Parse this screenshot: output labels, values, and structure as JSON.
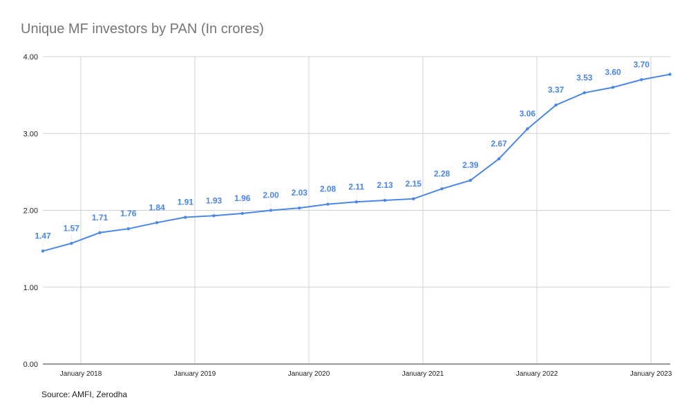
{
  "chart_data": {
    "type": "line",
    "title": "Unique MF investors by PAN (In crores)",
    "source": "Source: AMFI, Zerodha",
    "xlabel": "",
    "ylabel": "",
    "ylim": [
      0,
      4
    ],
    "yticks": [
      "0.00",
      "1.00",
      "2.00",
      "3.00",
      "4.00"
    ],
    "xticks": [
      {
        "date": "2018-01",
        "label": "January 2018"
      },
      {
        "date": "2019-01",
        "label": "January 2019"
      },
      {
        "date": "2020-01",
        "label": "January 2020"
      },
      {
        "date": "2021-01",
        "label": "January 2021"
      },
      {
        "date": "2022-01",
        "label": "January 2022"
      },
      {
        "date": "2023-01",
        "label": "January 2023"
      }
    ],
    "grid": true,
    "legend": "none",
    "color": "#4a86e8",
    "series": [
      {
        "x": [
          "2017-09",
          "2017-12",
          "2018-03",
          "2018-06",
          "2018-09",
          "2018-12",
          "2019-03",
          "2019-06",
          "2019-09",
          "2019-12",
          "2020-03",
          "2020-06",
          "2020-09",
          "2020-12",
          "2021-03",
          "2021-06",
          "2021-09",
          "2021-12",
          "2022-03",
          "2022-06",
          "2022-09",
          "2022-12",
          "2023-03"
        ],
        "values": [
          1.47,
          1.57,
          1.71,
          1.76,
          1.84,
          1.91,
          1.93,
          1.96,
          2.0,
          2.03,
          2.08,
          2.11,
          2.13,
          2.15,
          2.28,
          2.39,
          2.67,
          3.06,
          3.37,
          3.53,
          3.6,
          3.7,
          3.77
        ],
        "data_labels": [
          "1.47",
          "1.57",
          "1.71",
          "1.76",
          "1.84",
          "1.91",
          "1.93",
          "1.96",
          "2.00",
          "2.03",
          "2.08",
          "2.11",
          "2.13",
          "2.15",
          "2.28",
          "2.39",
          "2.67",
          "3.06",
          "3.37",
          "3.53",
          "3.60",
          "3.70",
          ""
        ]
      }
    ]
  }
}
